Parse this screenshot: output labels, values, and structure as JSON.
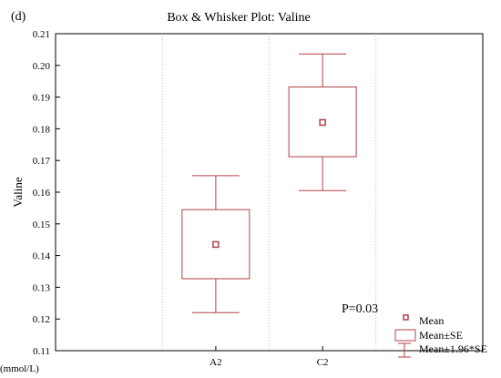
{
  "panel_label": "(d)",
  "colors": {
    "accent": "#b04048",
    "axis": "#000000",
    "grid": "#aaaaaa"
  },
  "chart_data": {
    "type": "box",
    "title": "Box & Whisker Plot: Valine",
    "xlabel": "",
    "ylabel": "Valine",
    "unit_label": "(mmol/L)",
    "ylim": [
      0.11,
      0.21
    ],
    "yticks": [
      0.11,
      0.12,
      0.13,
      0.14,
      0.15,
      0.16,
      0.17,
      0.18,
      0.19,
      0.2,
      0.21
    ],
    "ytick_labels": [
      "0.11",
      "0.12",
      "0.13",
      "0.14",
      "0.15",
      "0.16",
      "0.17",
      "0.18",
      "0.19",
      "0.20",
      "0.21"
    ],
    "categories": [
      "A2",
      "C2"
    ],
    "series": [
      {
        "category": "A2",
        "mean": 0.1435,
        "se_low": 0.1327,
        "se_high": 0.1545,
        "ci_low": 0.122,
        "ci_high": 0.1652
      },
      {
        "category": "C2",
        "mean": 0.182,
        "se_low": 0.1712,
        "se_high": 0.1932,
        "ci_low": 0.1605,
        "ci_high": 0.2036
      }
    ],
    "annotation": "P=0.03",
    "legend": {
      "placement": "bottom-right",
      "items": [
        "Mean",
        "Mean±SE",
        "Mean±1.96*SE"
      ]
    }
  }
}
